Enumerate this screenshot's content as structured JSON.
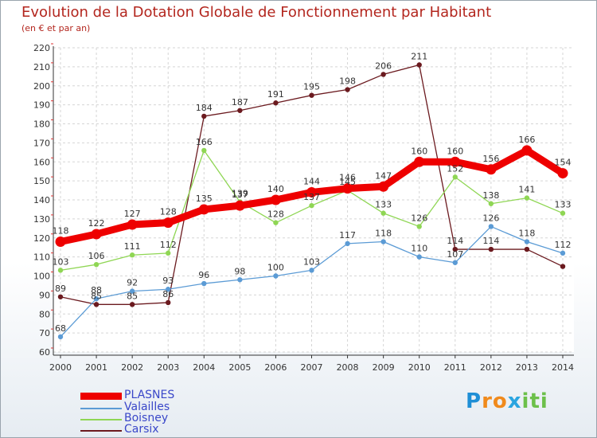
{
  "chart_data": {
    "type": "line",
    "title": "Evolution de la Dotation Globale de Fonctionnement par Habitant",
    "subtitle": "(en € et par an)",
    "xlabel": "",
    "ylabel": "",
    "ylim": [
      60,
      220
    ],
    "y_ticks": [
      60,
      70,
      80,
      90,
      100,
      110,
      120,
      130,
      140,
      150,
      160,
      170,
      180,
      190,
      200,
      210,
      220
    ],
    "categories": [
      "2000",
      "2001",
      "2002",
      "2003",
      "2004",
      "2005",
      "2006",
      "2007",
      "2008",
      "2009",
      "2010",
      "2011",
      "2012",
      "2013",
      "2014"
    ],
    "series": [
      {
        "name": "Carsix",
        "color": "#6b1a1f",
        "values": [
          89,
          85,
          85,
          86,
          184,
          187,
          191,
          195,
          198,
          206,
          211,
          114,
          114,
          114,
          105
        ],
        "labels": [
          "89",
          "85",
          "85",
          "86",
          "184",
          "187",
          "191",
          "195",
          "198",
          "206",
          "211",
          "114",
          "114",
          "",
          ""
        ]
      },
      {
        "name": "Boisney",
        "color": "#8fd654",
        "values": [
          103,
          106,
          111,
          112,
          166,
          139,
          128,
          137,
          145,
          133,
          126,
          152,
          138,
          141,
          133
        ],
        "labels": [
          "103",
          "106",
          "111",
          "112",
          "166",
          "139",
          "128",
          "137",
          "145",
          "133",
          "126",
          "152",
          "138",
          "141",
          "133"
        ]
      },
      {
        "name": "Valailles",
        "color": "#5b9bd5",
        "values": [
          68,
          88,
          92,
          93,
          96,
          98,
          100,
          103,
          117,
          118,
          110,
          107,
          126,
          118,
          112
        ],
        "labels": [
          "68",
          "88",
          "92",
          "93",
          "96",
          "98",
          "100",
          "103",
          "117",
          "118",
          "110",
          "107",
          "126",
          "118",
          "112"
        ]
      },
      {
        "name": "PLASNES",
        "color": "#ee0000",
        "values": [
          118,
          122,
          127,
          128,
          135,
          137,
          140,
          144,
          146,
          147,
          160,
          160,
          156,
          166,
          154
        ],
        "labels": [
          "118",
          "122",
          "127",
          "128",
          "135",
          "137",
          "140",
          "144",
          "146",
          "147",
          "160",
          "160",
          "156",
          "166",
          "154"
        ]
      }
    ],
    "legend": [
      "PLASNES",
      "Valailles",
      "Boisney",
      "Carsix"
    ],
    "legend_position": "bottom-left",
    "grid": true
  },
  "brand": {
    "logo_text": "Proxiti",
    "logo_letters": [
      "P",
      "r",
      "o",
      "x",
      "i",
      "t",
      "i"
    ]
  }
}
